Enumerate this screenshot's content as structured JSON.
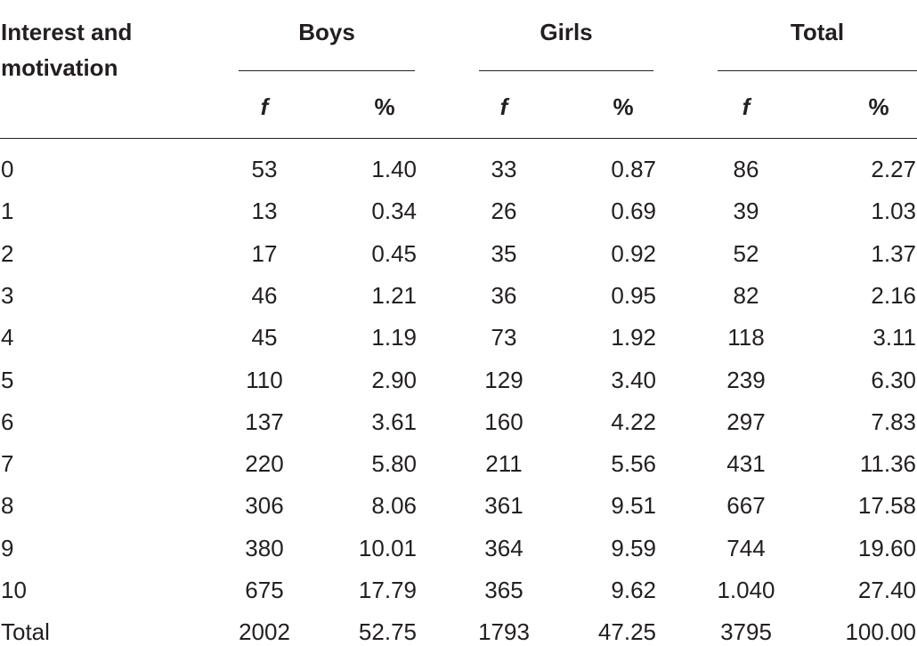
{
  "table": {
    "header": {
      "first_col": "Interest and motivation",
      "groups": [
        "Boys",
        "Girls",
        "Total"
      ],
      "sub_f": "f",
      "sub_pct": "%"
    },
    "rows": [
      {
        "label": "0",
        "boys_f": "53",
        "boys_pct": "1.40",
        "girls_f": "33",
        "girls_pct": "0.87",
        "total_f": "86",
        "total_pct": "2.27"
      },
      {
        "label": "1",
        "boys_f": "13",
        "boys_pct": "0.34",
        "girls_f": "26",
        "girls_pct": "0.69",
        "total_f": "39",
        "total_pct": "1.03"
      },
      {
        "label": "2",
        "boys_f": "17",
        "boys_pct": "0.45",
        "girls_f": "35",
        "girls_pct": "0.92",
        "total_f": "52",
        "total_pct": "1.37"
      },
      {
        "label": "3",
        "boys_f": "46",
        "boys_pct": "1.21",
        "girls_f": "36",
        "girls_pct": "0.95",
        "total_f": "82",
        "total_pct": "2.16"
      },
      {
        "label": "4",
        "boys_f": "45",
        "boys_pct": "1.19",
        "girls_f": "73",
        "girls_pct": "1.92",
        "total_f": "118",
        "total_pct": "3.11"
      },
      {
        "label": "5",
        "boys_f": "110",
        "boys_pct": "2.90",
        "girls_f": "129",
        "girls_pct": "3.40",
        "total_f": "239",
        "total_pct": "6.30"
      },
      {
        "label": "6",
        "boys_f": "137",
        "boys_pct": "3.61",
        "girls_f": "160",
        "girls_pct": "4.22",
        "total_f": "297",
        "total_pct": "7.83"
      },
      {
        "label": "7",
        "boys_f": "220",
        "boys_pct": "5.80",
        "girls_f": "211",
        "girls_pct": "5.56",
        "total_f": "431",
        "total_pct": "11.36"
      },
      {
        "label": "8",
        "boys_f": "306",
        "boys_pct": "8.06",
        "girls_f": "361",
        "girls_pct": "9.51",
        "total_f": "667",
        "total_pct": "17.58"
      },
      {
        "label": "9",
        "boys_f": "380",
        "boys_pct": "10.01",
        "girls_f": "364",
        "girls_pct": "9.59",
        "total_f": "744",
        "total_pct": "19.60"
      },
      {
        "label": "10",
        "boys_f": "675",
        "boys_pct": "17.79",
        "girls_f": "365",
        "girls_pct": "9.62",
        "total_f": "1.040",
        "total_pct": "27.40"
      },
      {
        "label": "Total",
        "boys_f": "2002",
        "boys_pct": "52.75",
        "girls_f": "1793",
        "girls_pct": "47.25",
        "total_f": "3795",
        "total_pct": "100.00"
      }
    ]
  }
}
